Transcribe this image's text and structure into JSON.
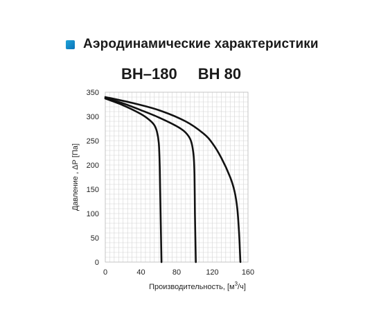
{
  "header": {
    "title": "Аэродинамические характеристики",
    "bullet_color": "#1592cf"
  },
  "models": [
    "ВН–180",
    "ВН 80"
  ],
  "chart_data": {
    "type": "line",
    "xlabel_main": "Производительность, [м",
    "xlabel_sup": "3",
    "xlabel_end": "/ч]",
    "ylabel": "Давление , ΔР [Па]",
    "xlim": [
      0,
      160
    ],
    "ylim": [
      0,
      350
    ],
    "x_ticks": [
      0,
      40,
      80,
      120,
      160
    ],
    "y_ticks": [
      0,
      50,
      100,
      150,
      200,
      250,
      300,
      350
    ],
    "grid": true,
    "line_color": "#111111",
    "series": [
      {
        "points": [
          [
            0,
            337
          ],
          [
            20,
            323
          ],
          [
            40,
            305
          ],
          [
            50,
            292
          ],
          [
            55,
            282
          ],
          [
            58,
            268
          ],
          [
            60,
            245
          ],
          [
            61,
            200
          ],
          [
            61.5,
            150
          ],
          [
            62,
            100
          ],
          [
            62.5,
            50
          ],
          [
            63,
            0
          ]
        ]
      },
      {
        "points": [
          [
            0,
            338
          ],
          [
            20,
            327
          ],
          [
            40,
            313
          ],
          [
            60,
            298
          ],
          [
            80,
            280
          ],
          [
            90,
            267
          ],
          [
            96,
            250
          ],
          [
            99,
            220
          ],
          [
            100,
            180
          ],
          [
            100.5,
            100
          ],
          [
            101,
            50
          ],
          [
            101.5,
            0
          ]
        ]
      },
      {
        "points": [
          [
            0,
            340
          ],
          [
            30,
            328
          ],
          [
            60,
            313
          ],
          [
            90,
            290
          ],
          [
            110,
            265
          ],
          [
            120,
            245
          ],
          [
            130,
            215
          ],
          [
            140,
            175
          ],
          [
            145,
            145
          ],
          [
            148,
            110
          ],
          [
            150,
            60
          ],
          [
            151,
            20
          ],
          [
            151.5,
            0
          ]
        ]
      }
    ]
  }
}
